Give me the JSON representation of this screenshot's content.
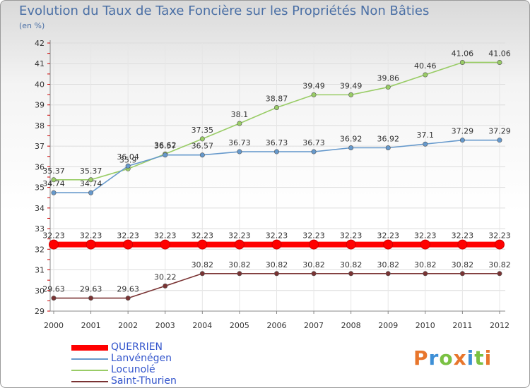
{
  "header": {
    "title": "Evolution du Taux de Taxe Foncière sur les Propriétés Non Bâties",
    "unit": "(en %)"
  },
  "logo": {
    "text": "Proxiti",
    "colors": [
      "#e8762c",
      "#3d8fd6",
      "#7ac143",
      "#e8762c",
      "#3d8fd6",
      "#7ac143",
      "#e8762c"
    ]
  },
  "chart_data": {
    "type": "line",
    "title": "Evolution du Taux de Taxe Foncière sur les Propriétés Non Bâties",
    "ylabel": "(en %)",
    "xlabel": "",
    "x": [
      "2000",
      "2001",
      "2002",
      "2003",
      "2004",
      "2005",
      "2006",
      "2007",
      "2008",
      "2009",
      "2010",
      "2011",
      "2012"
    ],
    "ylim": [
      29,
      42
    ],
    "yticks": [
      29,
      30,
      31,
      32,
      33,
      34,
      35,
      36,
      37,
      38,
      39,
      40,
      41,
      42
    ],
    "grid": true,
    "legend_position": "bottom-left",
    "series": [
      {
        "name": "QUERRIEN",
        "color": "#ff0000",
        "values": [
          32.23,
          32.23,
          32.23,
          32.23,
          32.23,
          32.23,
          32.23,
          32.23,
          32.23,
          32.23,
          32.23,
          32.23,
          32.23
        ],
        "labels": [
          "32.23",
          "32.23",
          "32.23",
          "32.23",
          "32.23",
          "32.23",
          "32.23",
          "32.23",
          "32.23",
          "32.23",
          "32.23",
          "32.23",
          "32.23"
        ]
      },
      {
        "name": "Lanvénégen",
        "color": "#6699cc",
        "values": [
          34.74,
          34.74,
          36.04,
          36.57,
          36.57,
          36.73,
          36.73,
          36.73,
          36.92,
          36.92,
          37.1,
          37.29,
          37.29
        ],
        "labels": [
          "34.74",
          "34.74",
          "36.04",
          "36.57",
          "36.57",
          "36.73",
          "36.73",
          "36.73",
          "36.92",
          "36.92",
          "37.1",
          "37.29",
          "37.29"
        ]
      },
      {
        "name": "Locunolé",
        "color": "#99cc66",
        "values": [
          35.37,
          35.37,
          35.9,
          36.62,
          37.35,
          38.1,
          38.87,
          39.49,
          39.49,
          39.86,
          40.46,
          41.06,
          41.06
        ],
        "labels": [
          "35.37",
          "35.37",
          "35.9",
          "36.62",
          "37.35",
          "38.1",
          "38.87",
          "39.49",
          "39.49",
          "39.86",
          "40.46",
          "41.06",
          "41.06"
        ]
      },
      {
        "name": "Saint-Thurien",
        "color": "#7a3333",
        "values": [
          29.63,
          29.63,
          29.63,
          30.22,
          30.82,
          30.82,
          30.82,
          30.82,
          30.82,
          30.82,
          30.82,
          30.82,
          30.82
        ],
        "labels": [
          "29.63",
          "29.63",
          "29.63",
          "30.22",
          "30.82",
          "30.82",
          "30.82",
          "30.82",
          "30.82",
          "30.82",
          "30.82",
          "30.82",
          "30.82"
        ]
      }
    ]
  }
}
